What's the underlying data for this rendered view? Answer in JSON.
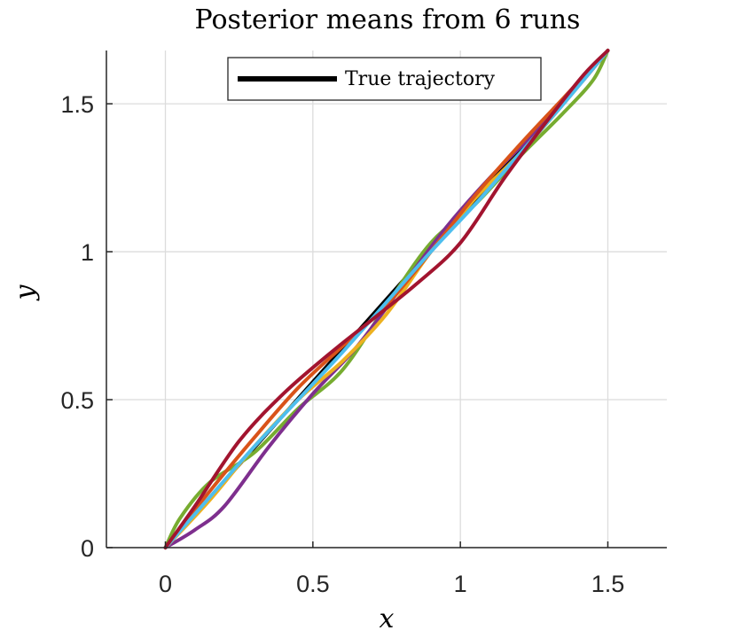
{
  "chart_data": {
    "type": "line",
    "title": "Posterior means from 6 runs",
    "xlabel": "x",
    "ylabel": "y",
    "xlim": [
      -0.2,
      1.7
    ],
    "ylim": [
      0,
      1.68
    ],
    "xticks": [
      0,
      0.5,
      1,
      1.5
    ],
    "xtick_labels": [
      "0",
      "0.5",
      "1",
      "1.5"
    ],
    "yticks": [
      0,
      0.5,
      1,
      1.5
    ],
    "ytick_labels": [
      "0",
      "0.5",
      "1",
      "1.5"
    ],
    "grid": true,
    "legend": {
      "position": "top-center",
      "entries": [
        "True trajectory"
      ]
    },
    "series": [
      {
        "name": "True trajectory",
        "color": "#000000",
        "x": [
          0,
          0.25,
          0.5,
          0.75,
          1.0,
          1.25,
          1.5
        ],
        "y": [
          0,
          0.28,
          0.56,
          0.84,
          1.12,
          1.4,
          1.68
        ]
      },
      {
        "color": "#77AC30",
        "x": [
          0,
          0.05,
          0.15,
          0.3,
          0.45,
          0.6,
          0.75,
          0.9,
          1.05,
          1.2,
          1.35,
          1.45,
          1.5
        ],
        "y": [
          0,
          0.1,
          0.22,
          0.32,
          0.47,
          0.6,
          0.82,
          1.03,
          1.16,
          1.32,
          1.47,
          1.58,
          1.68
        ]
      },
      {
        "color": "#7E2F8E",
        "x": [
          0,
          0.1,
          0.2,
          0.35,
          0.5,
          0.65,
          0.8,
          0.95,
          1.1,
          1.25,
          1.4,
          1.5
        ],
        "y": [
          0,
          0.06,
          0.14,
          0.34,
          0.52,
          0.68,
          0.88,
          1.08,
          1.25,
          1.4,
          1.56,
          1.68
        ]
      },
      {
        "color": "#EDB120",
        "x": [
          0,
          0.15,
          0.3,
          0.45,
          0.6,
          0.75,
          0.9,
          1.05,
          1.2,
          1.35,
          1.5
        ],
        "y": [
          0,
          0.16,
          0.34,
          0.5,
          0.63,
          0.79,
          1.0,
          1.18,
          1.33,
          1.5,
          1.68
        ]
      },
      {
        "color": "#D95319",
        "x": [
          0,
          0.15,
          0.3,
          0.45,
          0.6,
          0.75,
          0.9,
          1.05,
          1.2,
          1.35,
          1.5
        ],
        "y": [
          0,
          0.19,
          0.37,
          0.54,
          0.68,
          0.82,
          1.0,
          1.19,
          1.36,
          1.52,
          1.68
        ]
      },
      {
        "color": "#4DBEEE",
        "x": [
          0,
          0.15,
          0.3,
          0.45,
          0.6,
          0.75,
          0.9,
          1.05,
          1.2,
          1.35,
          1.5
        ],
        "y": [
          0,
          0.17,
          0.34,
          0.5,
          0.66,
          0.83,
          1.0,
          1.16,
          1.33,
          1.5,
          1.68
        ]
      },
      {
        "color": "#A2142F",
        "x": [
          0,
          0.1,
          0.25,
          0.4,
          0.55,
          0.7,
          0.85,
          1.0,
          1.15,
          1.3,
          1.42,
          1.5
        ],
        "y": [
          0,
          0.14,
          0.36,
          0.52,
          0.65,
          0.77,
          0.89,
          1.03,
          1.25,
          1.45,
          1.6,
          1.68
        ]
      }
    ]
  }
}
